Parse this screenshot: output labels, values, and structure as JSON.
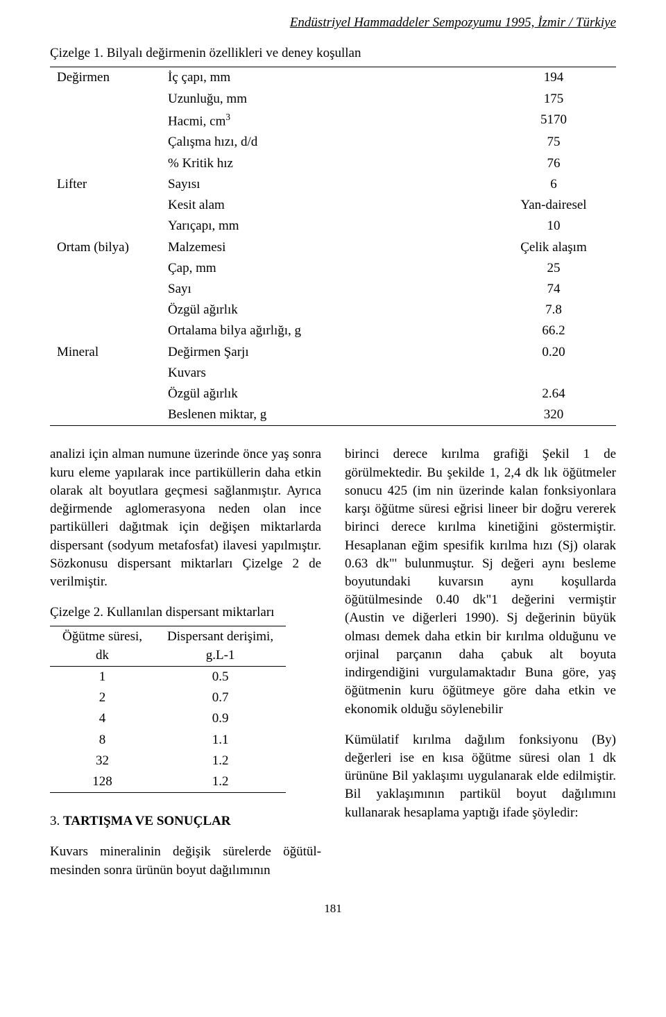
{
  "header": "Endüstriyel Hammaddeler Sempozyumu 1995, İzmir / Türkiye",
  "table1_caption": "Çizelge 1. Bilyalı değirmenin özellikleri ve deney koşullan",
  "sup3": "3",
  "t1": {
    "r1c1": "Değirmen",
    "r1c2": "İç çapı, mm",
    "r1c3": "194",
    "r2c2": "Uzunluğu, mm",
    "r2c3": "175",
    "r3c2": "Hacmi, cm",
    "r3c3": "5170",
    "r4c2": "Çalışma hızı, d/d",
    "r4c3": "75",
    "r5c2": "% Kritik hız",
    "r5c3": "76",
    "r6c1": "Lifter",
    "r6c2": "Sayısı",
    "r6c3": "6",
    "r7c2": "Kesit alam",
    "r7c3": "Yan-dairesel",
    "r8c2": "Yarıçapı, mm",
    "r8c3": "10",
    "r9c1": "Ortam (bilya)",
    "r9c2": "Malzemesi",
    "r9c3": "Çelik alaşım",
    "r10c2": "Çap, mm",
    "r10c3": "25",
    "r11c2": "Sayı",
    "r11c3": "74",
    "r12c2": "Özgül ağırlık",
    "r12c3": "7.8",
    "r13c2": "Ortalama bilya ağırlığı, g",
    "r13c3": "66.2",
    "r14c1": "Mineral",
    "r14c2": "Değirmen Şarjı",
    "r14c3": "0.20",
    "r15c2": "Kuvars",
    "r15c3": "",
    "r16c2": "Özgül ağırlık",
    "r16c3": "2.64",
    "r17c2": "Beslenen miktar, g",
    "r17c3": "320"
  },
  "left_p1": "analizi için alman numune üzerinde önce yaş sonra kuru eleme yapılarak ince partiküllerin daha etkin olarak alt boyutlara geçmesi sağlanmıştır. Ayrıca değirmende aglome­rasyona neden olan ince partikülleri dağıtmak için değişen miktarlarda dispersant (sodyum metafosfat) ilavesi yapılmıştır. Sözkonusu dispersant miktarları Çizelge 2 de verilmiştir.",
  "table2_caption": "Çizelge 2. Kullanılan dispersant miktarları",
  "t2": {
    "h1a": "Öğütme süresi,",
    "h1b": "dk",
    "h2a": "Dispersant derişimi,",
    "h2b": "g.L-1",
    "r1c1": "1",
    "r1c2": "0.5",
    "r2c1": "2",
    "r2c2": "0.7",
    "r3c1": "4",
    "r3c2": "0.9",
    "r4c1": "8",
    "r4c2": "1.1",
    "r5c1": "32",
    "r5c2": "1.2",
    "r6c1": "128",
    "r6c2": "1.2"
  },
  "section_heading_n": "3. ",
  "section_heading_b": "TARTIŞMA VE SONUÇLAR",
  "left_p2": "Kuvars mineralinin değişik sürelerde öğütül­mesinden sonra ürünün boyut dağılımının",
  "right_p1": "birinci derece kırılma grafiği Şekil 1 de görülmektedir. Bu şekilde 1, 2,4 dk lık öğütmeler sonucu 425 (im nin üzerinde kalan fonksiyonlara karşı öğütme süresi eğrisi lineer bir doğru vererek birinci derece kırılma kinetiğini göstermiştir. Hesaplanan eğim spesifik kırılma hızı (Sj) olarak 0.63 dk\"' bulunmuştur. Sj değeri aynı besleme boyutundaki kuvarsın aynı koşullarda öğütülmesinde 0.40 dk\"1 değerini vermiştir (Austin ve diğerleri 1990). Sj değerinin büyük olması demek daha etkin bir kırılma olduğunu ve orjinal parçanın daha çabuk alt boyuta indirgendiğini vurgulamaktadır Buna göre, yaş öğütmenin kuru öğütmeye göre daha etkin ve ekonomik olduğu söylenebilir",
  "right_p2": "Kümülatif kırılma dağılım fonksiyonu (By) değerleri ise en kısa öğütme süresi olan 1 dk ürününe Bil yaklaşımı uygulanarak elde edilmiştir. Bil yaklaşımının partikül boyut dağılımını kullanarak hesaplama yaptığı ifade şöyledir:",
  "page_number": "181"
}
